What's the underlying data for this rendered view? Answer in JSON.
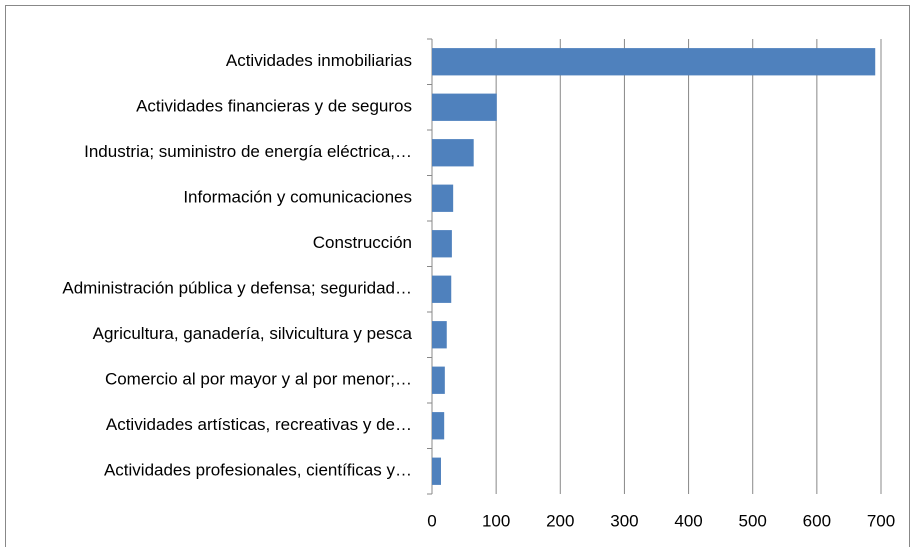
{
  "chart_data": {
    "type": "bar",
    "orientation": "horizontal",
    "categories": [
      "Actividades inmobiliarias",
      "Actividades financieras y de seguros",
      "Industria; suministro de energía eléctrica,…",
      "Información y comunicaciones",
      "Construcción",
      "Administración pública y defensa; seguridad…",
      "Agricultura, ganadería, silvicultura y pesca",
      "Comercio al por mayor y al por menor;…",
      "Actividades artísticas, recreativas y de…",
      "Actividades profesionales, científicas y…"
    ],
    "values": [
      691,
      101,
      65,
      33,
      31,
      30,
      23,
      20,
      19,
      14
    ],
    "color": "#4f81bd",
    "xlim": [
      0,
      700
    ],
    "xticks": [
      0,
      100,
      200,
      300,
      400,
      500,
      600,
      700
    ],
    "grid": true
  }
}
